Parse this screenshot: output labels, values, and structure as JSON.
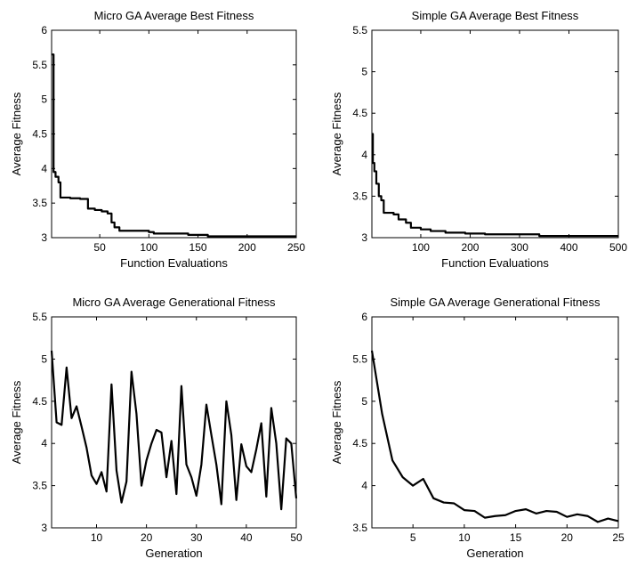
{
  "chart_data": [
    {
      "type": "line",
      "title": "Micro GA Average Best Fitness",
      "xlabel": "Function Evaluations",
      "ylabel": "Average Fitness",
      "xlim": [
        1,
        250
      ],
      "ylim": [
        3,
        6
      ],
      "xticks": [
        50,
        100,
        150,
        200,
        250
      ],
      "yticks": [
        3,
        3.5,
        4,
        4.5,
        5,
        5.5,
        6
      ],
      "ytick_labels": [
        "3",
        "3.5",
        "4",
        "4.5",
        "5",
        "5.5",
        "6"
      ],
      "step": true,
      "grid": false,
      "x": [
        1,
        3,
        5,
        8,
        10,
        20,
        30,
        38,
        45,
        52,
        58,
        62,
        65,
        70,
        85,
        100,
        105,
        140,
        160,
        250
      ],
      "y": [
        5.65,
        3.95,
        3.88,
        3.8,
        3.58,
        3.57,
        3.56,
        3.42,
        3.4,
        3.38,
        3.35,
        3.22,
        3.15,
        3.1,
        3.1,
        3.08,
        3.06,
        3.04,
        3.02,
        3.02
      ]
    },
    {
      "type": "line",
      "title": "Simple GA Average Best Fitness",
      "xlabel": "Function Evaluations",
      "ylabel": "Average Fitness",
      "xlim": [
        1,
        500
      ],
      "ylim": [
        3,
        5.5
      ],
      "xticks": [
        100,
        200,
        300,
        400,
        500
      ],
      "yticks": [
        3,
        3.5,
        4,
        4.5,
        5,
        5.5
      ],
      "ytick_labels": [
        "3",
        "3.5",
        "4",
        "4.5",
        "5",
        "5.5"
      ],
      "step": true,
      "grid": false,
      "x": [
        1,
        3,
        6,
        10,
        15,
        20,
        25,
        45,
        55,
        70,
        80,
        100,
        120,
        150,
        190,
        230,
        340,
        500
      ],
      "y": [
        4.25,
        3.9,
        3.8,
        3.65,
        3.5,
        3.45,
        3.3,
        3.28,
        3.22,
        3.18,
        3.12,
        3.1,
        3.08,
        3.06,
        3.05,
        3.04,
        3.02,
        3.02
      ]
    },
    {
      "type": "line",
      "title": "Micro GA Average Generational Fitness",
      "xlabel": "Generation",
      "ylabel": "Average Fitness",
      "xlim": [
        1,
        50
      ],
      "ylim": [
        3,
        5.5
      ],
      "xticks": [
        10,
        20,
        30,
        40,
        50
      ],
      "yticks": [
        3,
        3.5,
        4,
        4.5,
        5,
        5.5
      ],
      "ytick_labels": [
        "3",
        "3.5",
        "4",
        "4.5",
        "5",
        "5.5"
      ],
      "step": false,
      "grid": false,
      "x": [
        1,
        2,
        3,
        4,
        5,
        6,
        7,
        8,
        9,
        10,
        11,
        12,
        13,
        14,
        15,
        16,
        17,
        18,
        19,
        20,
        21,
        22,
        23,
        24,
        25,
        26,
        27,
        28,
        29,
        30,
        31,
        32,
        33,
        34,
        35,
        36,
        37,
        38,
        39,
        40,
        41,
        42,
        43,
        44,
        45,
        46,
        47,
        48,
        49,
        50
      ],
      "y": [
        5.1,
        4.25,
        4.22,
        4.9,
        4.3,
        4.44,
        4.2,
        3.95,
        3.62,
        3.52,
        3.66,
        3.43,
        4.7,
        3.68,
        3.3,
        3.55,
        4.85,
        4.35,
        3.5,
        3.8,
        4.0,
        4.16,
        4.13,
        3.6,
        4.03,
        3.4,
        4.68,
        3.75,
        3.6,
        3.38,
        3.75,
        4.46,
        4.1,
        3.75,
        3.28,
        4.5,
        4.1,
        3.33,
        3.99,
        3.73,
        3.66,
        3.93,
        4.24,
        3.37,
        4.42,
        4.0,
        3.22,
        4.06,
        4.0,
        3.35
      ]
    },
    {
      "type": "line",
      "title": "Simple GA Average Generational Fitness",
      "xlabel": "Generation",
      "ylabel": "Average Fitness",
      "xlim": [
        1,
        25
      ],
      "ylim": [
        3.5,
        6
      ],
      "xticks": [
        5,
        10,
        15,
        20,
        25
      ],
      "yticks": [
        3.5,
        4,
        4.5,
        5,
        5.5,
        6
      ],
      "ytick_labels": [
        "3.5",
        "4",
        "4.5",
        "5",
        "5.5",
        "6"
      ],
      "step": false,
      "grid": false,
      "x": [
        1,
        2,
        3,
        4,
        5,
        6,
        7,
        8,
        9,
        10,
        11,
        12,
        13,
        14,
        15,
        16,
        17,
        18,
        19,
        20,
        21,
        22,
        23,
        24,
        25
      ],
      "y": [
        5.6,
        4.85,
        4.3,
        4.1,
        4.0,
        4.08,
        3.85,
        3.8,
        3.79,
        3.71,
        3.7,
        3.62,
        3.64,
        3.65,
        3.7,
        3.72,
        3.67,
        3.7,
        3.69,
        3.63,
        3.66,
        3.64,
        3.57,
        3.61,
        3.58
      ]
    }
  ]
}
